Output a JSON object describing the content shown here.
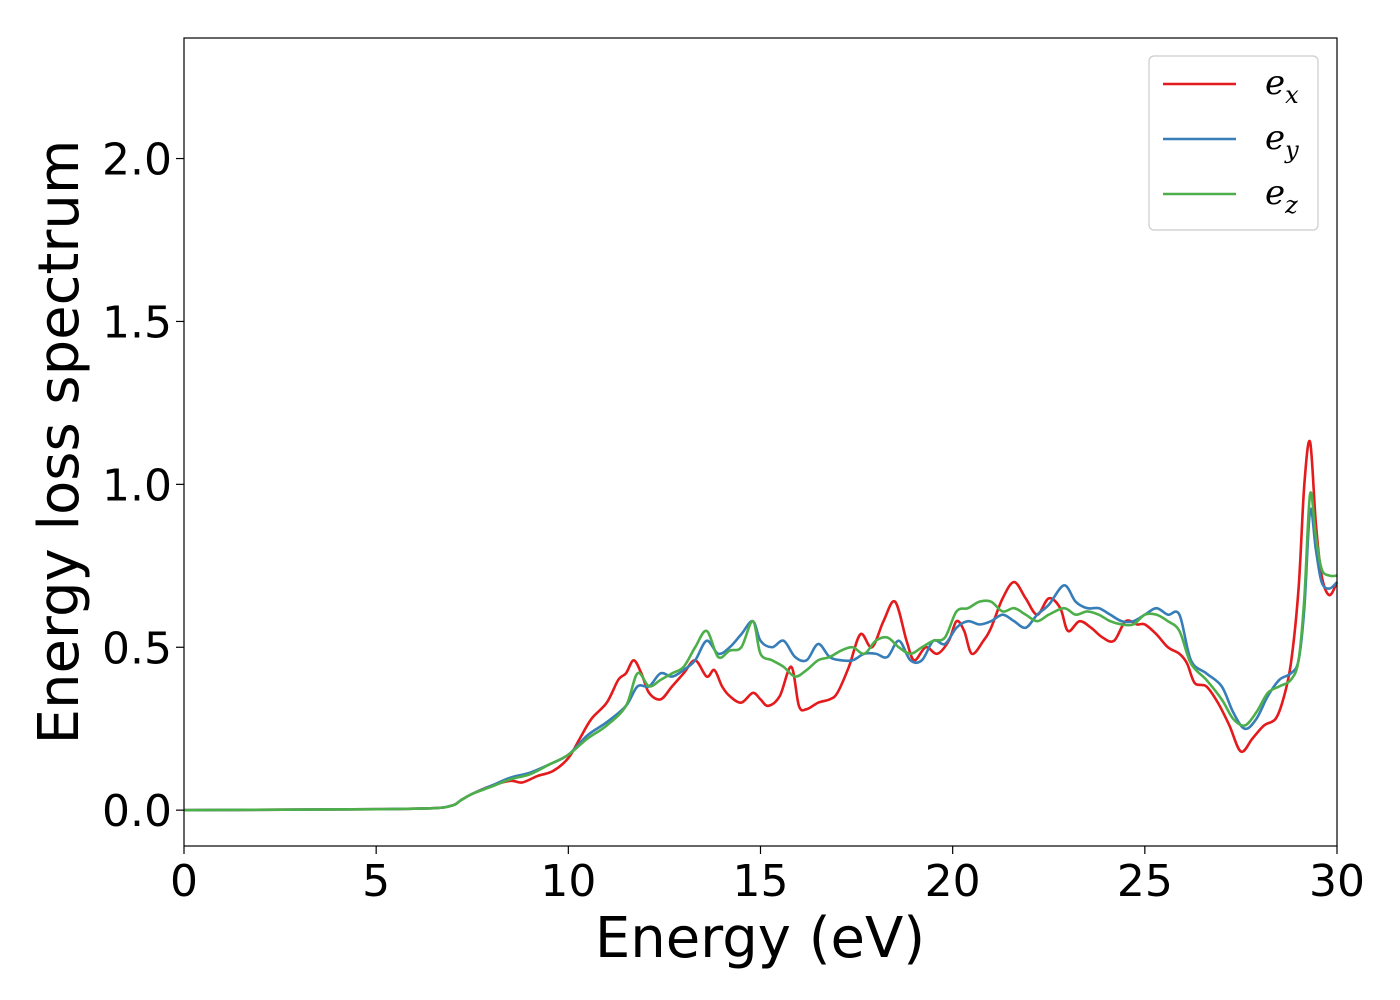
{
  "chart_data": {
    "type": "line",
    "title": "",
    "xlabel": "Energy (eV)",
    "ylabel": "Energy loss spectrum",
    "xlim": [
      0,
      30
    ],
    "ylim": [
      -0.11,
      2.37
    ],
    "xticks": [
      0,
      5,
      10,
      15,
      20,
      25,
      30
    ],
    "xtick_labels": [
      "0",
      "5",
      "10",
      "15",
      "20",
      "25",
      "30"
    ],
    "yticks": [
      0.0,
      0.5,
      1.0,
      1.5,
      2.0
    ],
    "ytick_labels": [
      "0.0",
      "0.5",
      "1.0",
      "1.5",
      "2.0"
    ],
    "grid": false,
    "legend_position": "top-right",
    "series": [
      {
        "name": "e_x",
        "legend_base": "e",
        "legend_sub": "x",
        "color": "#e41a1c",
        "x": [
          0,
          5,
          6.5,
          7.0,
          7.2,
          7.5,
          8.0,
          8.5,
          8.8,
          9.2,
          9.6,
          10.0,
          10.3,
          10.6,
          11.0,
          11.3,
          11.5,
          11.7,
          11.9,
          12.1,
          12.4,
          12.7,
          13.0,
          13.3,
          13.6,
          13.8,
          14.0,
          14.2,
          14.5,
          14.8,
          15.0,
          15.2,
          15.5,
          15.8,
          16.0,
          16.2,
          16.5,
          16.8,
          17.0,
          17.3,
          17.6,
          17.9,
          18.2,
          18.5,
          18.8,
          19.0,
          19.3,
          19.6,
          19.9,
          20.1,
          20.3,
          20.5,
          20.8,
          21.0,
          21.3,
          21.6,
          21.9,
          22.2,
          22.5,
          22.8,
          23.0,
          23.3,
          23.6,
          23.9,
          24.2,
          24.5,
          24.8,
          25.0,
          25.3,
          25.6,
          25.9,
          26.1,
          26.3,
          26.6,
          26.9,
          27.2,
          27.5,
          27.8,
          28.1,
          28.4,
          28.6,
          28.8,
          29.0,
          29.15,
          29.3,
          29.45,
          29.6,
          29.8,
          30.0
        ],
        "y": [
          0.0,
          0.003,
          0.006,
          0.015,
          0.03,
          0.05,
          0.075,
          0.09,
          0.085,
          0.105,
          0.12,
          0.16,
          0.22,
          0.28,
          0.33,
          0.4,
          0.42,
          0.46,
          0.42,
          0.36,
          0.34,
          0.38,
          0.42,
          0.46,
          0.41,
          0.43,
          0.38,
          0.35,
          0.33,
          0.36,
          0.34,
          0.32,
          0.35,
          0.44,
          0.32,
          0.31,
          0.33,
          0.34,
          0.36,
          0.44,
          0.54,
          0.5,
          0.58,
          0.64,
          0.52,
          0.46,
          0.5,
          0.48,
          0.52,
          0.58,
          0.55,
          0.48,
          0.52,
          0.56,
          0.65,
          0.7,
          0.65,
          0.6,
          0.65,
          0.62,
          0.55,
          0.58,
          0.56,
          0.53,
          0.52,
          0.58,
          0.57,
          0.57,
          0.54,
          0.5,
          0.48,
          0.45,
          0.39,
          0.38,
          0.33,
          0.26,
          0.18,
          0.22,
          0.26,
          0.28,
          0.34,
          0.45,
          0.68,
          1.0,
          1.13,
          0.88,
          0.72,
          0.66,
          0.7
        ]
      },
      {
        "name": "e_y",
        "legend_base": "e",
        "legend_sub": "y",
        "color": "#377eb8",
        "x": [
          0,
          5,
          6.5,
          7.0,
          7.2,
          7.5,
          8.0,
          8.5,
          9.0,
          9.5,
          10.0,
          10.5,
          11.0,
          11.5,
          11.8,
          12.1,
          12.4,
          12.7,
          13.0,
          13.3,
          13.6,
          13.9,
          14.2,
          14.5,
          14.8,
          15.0,
          15.3,
          15.6,
          15.9,
          16.2,
          16.5,
          16.8,
          17.1,
          17.4,
          17.7,
          18.0,
          18.3,
          18.6,
          18.9,
          19.2,
          19.5,
          19.8,
          20.1,
          20.4,
          20.7,
          21.0,
          21.3,
          21.6,
          21.9,
          22.2,
          22.5,
          22.9,
          23.2,
          23.5,
          23.8,
          24.1,
          24.4,
          24.7,
          25.0,
          25.3,
          25.6,
          25.9,
          26.2,
          26.6,
          27.0,
          27.3,
          27.6,
          27.9,
          28.2,
          28.5,
          28.8,
          29.0,
          29.15,
          29.3,
          29.45,
          29.6,
          29.8,
          30.0
        ],
        "y": [
          0.0,
          0.003,
          0.006,
          0.015,
          0.03,
          0.05,
          0.075,
          0.1,
          0.115,
          0.14,
          0.17,
          0.23,
          0.27,
          0.32,
          0.38,
          0.38,
          0.42,
          0.41,
          0.43,
          0.46,
          0.52,
          0.48,
          0.5,
          0.54,
          0.58,
          0.52,
          0.5,
          0.52,
          0.47,
          0.46,
          0.51,
          0.47,
          0.46,
          0.46,
          0.48,
          0.48,
          0.47,
          0.52,
          0.46,
          0.46,
          0.52,
          0.51,
          0.56,
          0.58,
          0.57,
          0.58,
          0.6,
          0.58,
          0.56,
          0.6,
          0.63,
          0.69,
          0.64,
          0.62,
          0.62,
          0.6,
          0.58,
          0.58,
          0.6,
          0.62,
          0.6,
          0.6,
          0.46,
          0.42,
          0.38,
          0.3,
          0.25,
          0.28,
          0.35,
          0.4,
          0.42,
          0.46,
          0.62,
          0.92,
          0.8,
          0.7,
          0.68,
          0.7
        ]
      },
      {
        "name": "e_z",
        "legend_base": "e",
        "legend_sub": "z",
        "color": "#4daf4a",
        "x": [
          0,
          5,
          6.5,
          7.0,
          7.2,
          7.5,
          8.0,
          8.5,
          9.0,
          9.5,
          10.0,
          10.5,
          11.0,
          11.5,
          11.8,
          12.1,
          12.4,
          12.7,
          13.0,
          13.3,
          13.6,
          13.9,
          14.2,
          14.5,
          14.8,
          15.0,
          15.3,
          15.6,
          15.9,
          16.2,
          16.5,
          16.8,
          17.1,
          17.4,
          17.7,
          18.0,
          18.3,
          18.6,
          18.9,
          19.2,
          19.5,
          19.8,
          20.1,
          20.4,
          20.7,
          21.0,
          21.3,
          21.6,
          21.9,
          22.2,
          22.5,
          22.9,
          23.2,
          23.5,
          23.8,
          24.1,
          24.4,
          24.7,
          25.0,
          25.3,
          25.6,
          25.9,
          26.2,
          26.6,
          27.0,
          27.3,
          27.6,
          27.9,
          28.2,
          28.5,
          28.8,
          29.0,
          29.15,
          29.3,
          29.45,
          29.6,
          29.8,
          30.0
        ],
        "y": [
          0.0,
          0.003,
          0.006,
          0.015,
          0.03,
          0.05,
          0.072,
          0.095,
          0.11,
          0.14,
          0.17,
          0.22,
          0.26,
          0.32,
          0.42,
          0.38,
          0.4,
          0.42,
          0.44,
          0.5,
          0.55,
          0.47,
          0.49,
          0.5,
          0.58,
          0.48,
          0.46,
          0.44,
          0.41,
          0.43,
          0.46,
          0.47,
          0.49,
          0.5,
          0.48,
          0.52,
          0.53,
          0.5,
          0.48,
          0.5,
          0.52,
          0.53,
          0.61,
          0.62,
          0.64,
          0.64,
          0.61,
          0.62,
          0.6,
          0.58,
          0.6,
          0.62,
          0.6,
          0.61,
          0.6,
          0.58,
          0.57,
          0.57,
          0.6,
          0.6,
          0.58,
          0.55,
          0.45,
          0.4,
          0.34,
          0.28,
          0.26,
          0.3,
          0.36,
          0.38,
          0.4,
          0.46,
          0.65,
          0.97,
          0.84,
          0.74,
          0.72,
          0.72
        ]
      }
    ]
  }
}
